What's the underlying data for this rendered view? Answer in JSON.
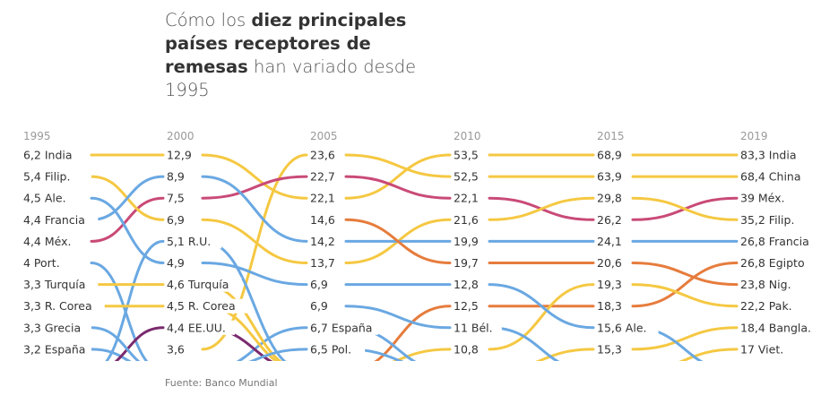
{
  "title": {
    "part1": "Cómo los ",
    "bold": "diez principales países receptores de remesas",
    "part2": " han variado desde 1995"
  },
  "source": "Fuente: Banco Mundial",
  "colors": {
    "yellow": "#f5c842",
    "blue": "#6aa8e2",
    "pink": "#c94a77",
    "orange": "#e67c3c",
    "purple": "#7a2a6e",
    "year_label": "#999999",
    "value_label": "#333333"
  },
  "chart_data": {
    "type": "bump",
    "title": "Cómo los diez principales países receptores de remesas han variado desde 1995",
    "years": [
      "1995",
      "2000",
      "2005",
      "2010",
      "2015",
      "2019"
    ],
    "columns": [
      {
        "year": "1995",
        "labels": [
          "6,2 India",
          "5,4 Filip.",
          "4,5 Ale.",
          "4,4 Francia",
          "4,4 Méx.",
          "4 Port.",
          "3,3 Turquía",
          "3,3 R. Corea",
          "3,3 Grecia",
          "3,2 España"
        ]
      },
      {
        "year": "2000",
        "labels": [
          "12,9",
          "8,9",
          "7,5",
          "6,9",
          "5,1 R.U.",
          "4,9",
          "4,6 Turquía",
          "4,5 R. Corea",
          "4,4 EE.UU.",
          "3,6"
        ]
      },
      {
        "year": "2005",
        "labels": [
          "23,6",
          "22,7",
          "22,1",
          "14,6",
          "14,2",
          "13,7",
          "6,9",
          "6,9",
          "6,7 España",
          "6,5 Pol."
        ]
      },
      {
        "year": "2010",
        "labels": [
          "53,5",
          "52,5",
          "22,1",
          "21,6",
          "19,9",
          "19,7",
          "12,8",
          "12,5",
          "11 Bél.",
          "10,8"
        ]
      },
      {
        "year": "2015",
        "labels": [
          "68,9",
          "63,9",
          "29,8",
          "26,2",
          "24,1",
          "20,6",
          "19,3",
          "18,3",
          "15,6 Ale.",
          "15,3"
        ]
      },
      {
        "year": "2019",
        "labels": [
          "83,3 India",
          "68,4 China",
          "39 Méx.",
          "35,2 Filip.",
          "26,8 Francia",
          "26,8 Egipto",
          "23,8 Nig.",
          "22,2 Pak.",
          "18,4 Bangla.",
          "17 Viet."
        ]
      }
    ],
    "series": [
      {
        "name": "India",
        "color": "yellow",
        "ranks": [
          1,
          1,
          3,
          1,
          1,
          1
        ]
      },
      {
        "name": "China",
        "color": "yellow",
        "ranks": [
          null,
          10,
          1,
          2,
          2,
          2
        ]
      },
      {
        "name": "Méx.",
        "color": "pink",
        "ranks": [
          5,
          3,
          2,
          3,
          4,
          3
        ]
      },
      {
        "name": "Filip.",
        "color": "yellow",
        "ranks": [
          2,
          4,
          6,
          4,
          3,
          4
        ]
      },
      {
        "name": "Francia",
        "color": "blue",
        "ranks": [
          4,
          2,
          5,
          5,
          5,
          5
        ]
      },
      {
        "name": "Egipto",
        "color": "orange",
        "ranks": [
          null,
          null,
          11,
          8,
          8,
          6
        ]
      },
      {
        "name": "Nig.",
        "color": "orange",
        "ranks": [
          null,
          null,
          4,
          6,
          6,
          7
        ]
      },
      {
        "name": "Pak.",
        "color": "yellow",
        "ranks": [
          null,
          null,
          11,
          10,
          7,
          8
        ]
      },
      {
        "name": "Bangla.",
        "color": "yellow",
        "ranks": [
          null,
          null,
          null,
          11,
          10,
          9
        ]
      },
      {
        "name": "Viet.",
        "color": "yellow",
        "ranks": [
          null,
          null,
          null,
          null,
          11,
          10
        ]
      },
      {
        "name": "Ale.",
        "color": "blue",
        "ranks": [
          3,
          6,
          7,
          7,
          9,
          11
        ]
      },
      {
        "name": "Bél.",
        "color": "blue",
        "ranks": [
          null,
          null,
          8,
          9,
          11,
          null
        ]
      },
      {
        "name": "España",
        "color": "blue",
        "ranks": [
          10,
          11,
          9,
          11,
          null,
          null
        ]
      },
      {
        "name": "Port.",
        "color": "blue",
        "ranks": [
          6,
          11,
          null,
          null,
          null,
          null
        ]
      },
      {
        "name": "R.U.",
        "color": "blue",
        "ranks": [
          11,
          5,
          11,
          null,
          null,
          null
        ]
      },
      {
        "name": "Turquía",
        "color": "yellow",
        "ranks": [
          7,
          7,
          11,
          null,
          null,
          null
        ]
      },
      {
        "name": "R. Corea",
        "color": "yellow",
        "ranks": [
          8,
          8,
          11,
          null,
          null,
          null
        ]
      },
      {
        "name": "EE.UU.",
        "color": "purple",
        "ranks": [
          11,
          9,
          11,
          null,
          null,
          null
        ]
      },
      {
        "name": "Grecia",
        "color": "blue",
        "ranks": [
          9,
          11,
          null,
          null,
          null,
          null
        ]
      },
      {
        "name": "Pol.",
        "color": "blue",
        "ranks": [
          null,
          11,
          10,
          11,
          null,
          null
        ]
      }
    ]
  }
}
